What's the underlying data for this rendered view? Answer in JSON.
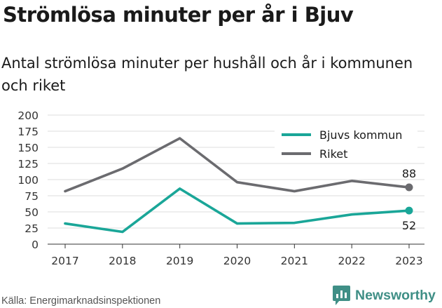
{
  "title": "Strömlösa minuter per år i Bjuv",
  "subtitle": "Antal strömlösa minuter per hushåll och år i kommunen och riket",
  "source": "Källa: Energimarknadsinspektionen",
  "brand": {
    "name": "Newsworthy",
    "icon": "bar-chart-speech-bubble-icon",
    "color": "#3f8f86"
  },
  "chart_data": {
    "type": "line",
    "x": [
      "2017",
      "2018",
      "2019",
      "2020",
      "2021",
      "2022",
      "2023"
    ],
    "ylim": [
      0,
      200
    ],
    "yticks": [
      0,
      25,
      50,
      75,
      100,
      125,
      150,
      175,
      200
    ],
    "grid": true,
    "legend_position": "top-right",
    "series": [
      {
        "name": "Bjuvs kommun",
        "color": "#1aa698",
        "values": [
          32,
          19,
          86,
          32,
          33,
          46,
          52
        ],
        "end_label": "52"
      },
      {
        "name": "Riket",
        "color": "#6b6b6f",
        "values": [
          82,
          117,
          164,
          96,
          82,
          98,
          88
        ],
        "end_label": "88"
      }
    ]
  }
}
